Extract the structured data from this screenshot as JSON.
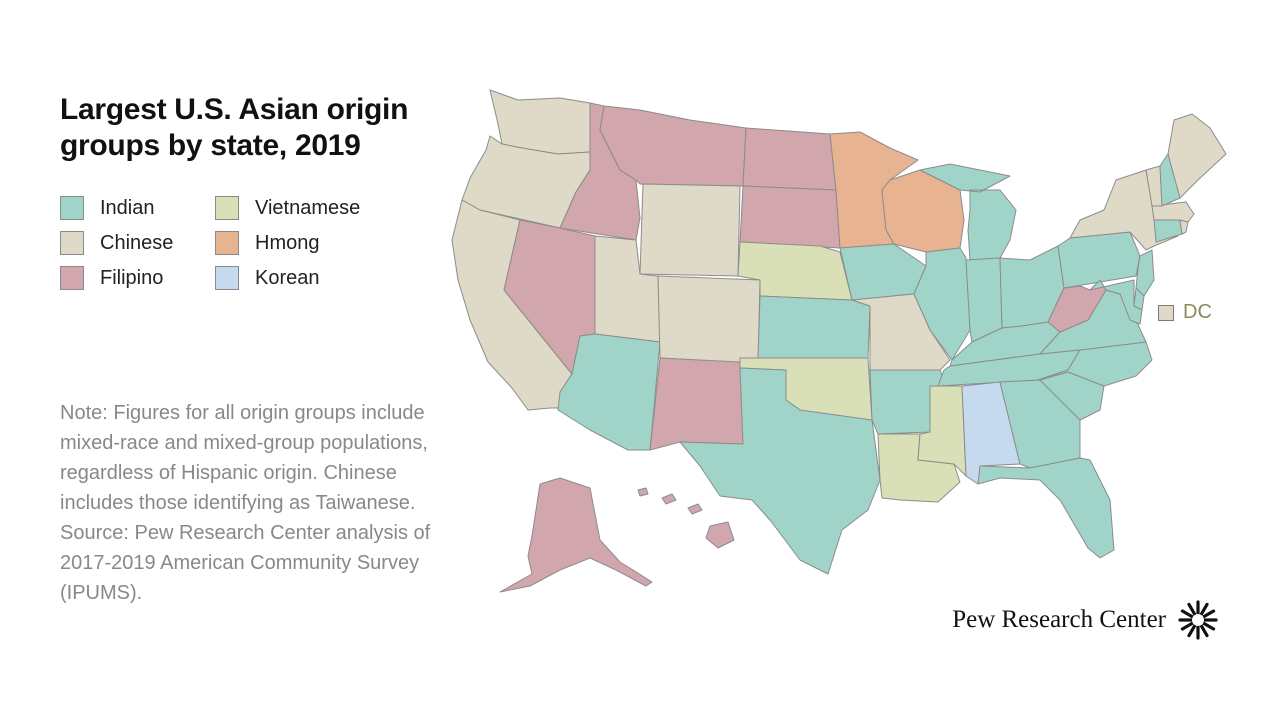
{
  "title": "Largest U.S. Asian origin groups by state, 2019",
  "legend": [
    {
      "key": "indian",
      "label": "Indian",
      "color": "#a0d4c8"
    },
    {
      "key": "chinese",
      "label": "Chinese",
      "color": "#dedac7"
    },
    {
      "key": "filipino",
      "label": "Filipino",
      "color": "#d1a6ac"
    },
    {
      "key": "vietnamese",
      "label": "Vietnamese",
      "color": "#d9dfb7"
    },
    {
      "key": "hmong",
      "label": "Hmong",
      "color": "#e8b390"
    },
    {
      "key": "korean",
      "label": "Korean",
      "color": "#c5d9ef"
    }
  ],
  "dc": {
    "label": "DC",
    "group": "chinese"
  },
  "note": "Note: Figures for all origin groups include mixed-race and mixed-group populations, regardless of Hispanic origin. Chinese includes those identifying as Taiwanese.",
  "source": "Source: Pew Research Center analysis of 2017-2019 American Community Survey (IPUMS).",
  "brand": {
    "name": "Pew Research Center"
  },
  "colors": {
    "border": "#8c8c8c",
    "title": "#111111",
    "note": "#888888"
  },
  "states": [
    {
      "code": "WA",
      "group": "chinese"
    },
    {
      "code": "OR",
      "group": "chinese"
    },
    {
      "code": "CA",
      "group": "chinese"
    },
    {
      "code": "ID",
      "group": "filipino"
    },
    {
      "code": "NV",
      "group": "filipino"
    },
    {
      "code": "MT",
      "group": "filipino"
    },
    {
      "code": "WY",
      "group": "chinese"
    },
    {
      "code": "UT",
      "group": "chinese"
    },
    {
      "code": "AZ",
      "group": "indian"
    },
    {
      "code": "CO",
      "group": "chinese"
    },
    {
      "code": "NM",
      "group": "filipino"
    },
    {
      "code": "ND",
      "group": "filipino"
    },
    {
      "code": "SD",
      "group": "filipino"
    },
    {
      "code": "NE",
      "group": "vietnamese"
    },
    {
      "code": "KS",
      "group": "indian"
    },
    {
      "code": "OK",
      "group": "vietnamese"
    },
    {
      "code": "TX",
      "group": "indian"
    },
    {
      "code": "MN",
      "group": "hmong"
    },
    {
      "code": "IA",
      "group": "indian"
    },
    {
      "code": "MO",
      "group": "chinese"
    },
    {
      "code": "AR",
      "group": "indian"
    },
    {
      "code": "LA",
      "group": "vietnamese"
    },
    {
      "code": "WI",
      "group": "hmong"
    },
    {
      "code": "IL",
      "group": "indian"
    },
    {
      "code": "MI",
      "group": "indian"
    },
    {
      "code": "IN",
      "group": "indian"
    },
    {
      "code": "OH",
      "group": "indian"
    },
    {
      "code": "KY",
      "group": "indian"
    },
    {
      "code": "TN",
      "group": "indian"
    },
    {
      "code": "MS",
      "group": "vietnamese"
    },
    {
      "code": "AL",
      "group": "korean"
    },
    {
      "code": "GA",
      "group": "indian"
    },
    {
      "code": "FL",
      "group": "indian"
    },
    {
      "code": "SC",
      "group": "indian"
    },
    {
      "code": "NC",
      "group": "indian"
    },
    {
      "code": "VA",
      "group": "indian"
    },
    {
      "code": "WV",
      "group": "filipino"
    },
    {
      "code": "PA",
      "group": "indian"
    },
    {
      "code": "NY",
      "group": "chinese"
    },
    {
      "code": "VT",
      "group": "chinese"
    },
    {
      "code": "NH",
      "group": "indian"
    },
    {
      "code": "ME",
      "group": "chinese"
    },
    {
      "code": "MA",
      "group": "chinese"
    },
    {
      "code": "RI",
      "group": "chinese"
    },
    {
      "code": "CT",
      "group": "indian"
    },
    {
      "code": "NJ",
      "group": "indian"
    },
    {
      "code": "DE",
      "group": "indian"
    },
    {
      "code": "MD",
      "group": "indian"
    },
    {
      "code": "AK",
      "group": "filipino"
    },
    {
      "code": "HI",
      "group": "filipino"
    }
  ]
}
